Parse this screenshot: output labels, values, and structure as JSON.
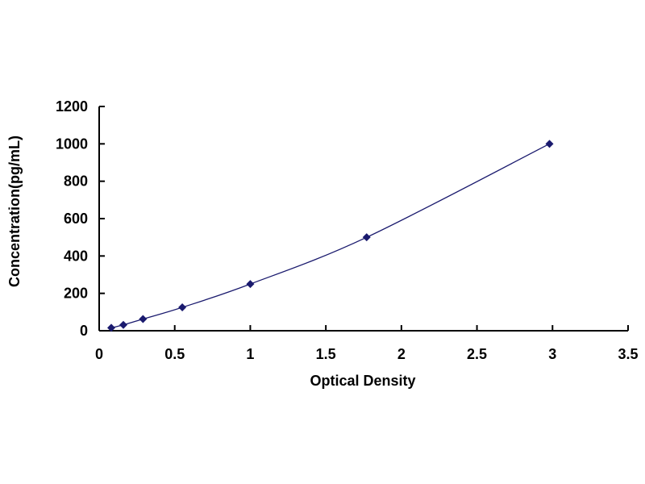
{
  "chart_data": {
    "type": "scatter",
    "title": "",
    "xlabel": "Optical Density",
    "ylabel": "Concentration(pg/mL)",
    "xlim": [
      0,
      3.5
    ],
    "ylim": [
      0,
      1200
    ],
    "xticks": [
      "0",
      "0.5",
      "1",
      "1.5",
      "2",
      "2.5",
      "3",
      "3.5"
    ],
    "yticks": [
      "0",
      "200",
      "400",
      "600",
      "800",
      "1000",
      "1200"
    ],
    "grid": false,
    "trendline": "smooth curve",
    "color": "#1a1a6e",
    "x": [
      0.08,
      0.16,
      0.29,
      0.55,
      1.0,
      1.77,
      2.98
    ],
    "y": [
      15.6,
      31.2,
      62.5,
      125,
      250,
      500,
      1000
    ]
  }
}
